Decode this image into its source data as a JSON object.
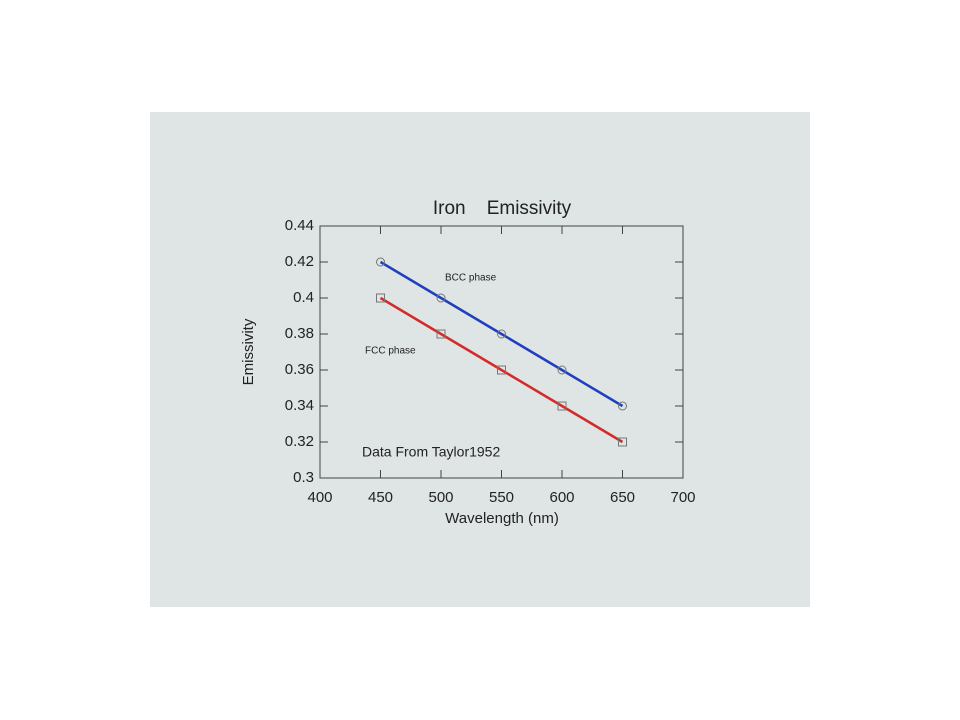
{
  "chart_data": {
    "type": "line",
    "title": "Iron    Emissivity",
    "x_label": "Wavelength  (nm)",
    "y_label": "Emissivity",
    "annotation": "Data From Taylor1952",
    "x": [
      450,
      500,
      550,
      600,
      650
    ],
    "series": [
      {
        "name": "BCC phase",
        "color": "#1f3fbf",
        "marker": "circle",
        "values": [
          0.42,
          0.4,
          0.38,
          0.36,
          0.34
        ]
      },
      {
        "name": "FCC phase",
        "color": "#d42a2a",
        "marker": "square",
        "values": [
          0.4,
          0.38,
          0.36,
          0.34,
          0.32
        ]
      }
    ],
    "xlim": [
      400,
      700
    ],
    "xticks": [
      400,
      450,
      500,
      550,
      600,
      650,
      700
    ],
    "ylim": [
      0.3,
      0.44
    ],
    "yticks": [
      0.3,
      0.32,
      0.34,
      0.36,
      0.38,
      0.4,
      0.42,
      0.44
    ]
  }
}
